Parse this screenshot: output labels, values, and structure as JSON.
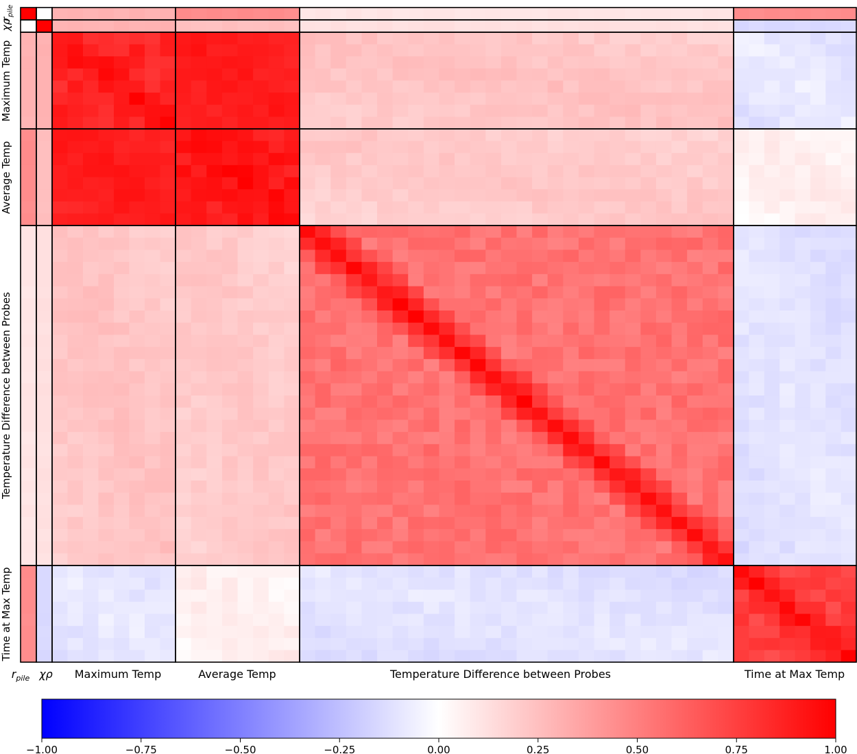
{
  "chart_data": {
    "type": "heatmap",
    "title": "",
    "xlabel": "",
    "ylabel": "",
    "groups": [
      {
        "key": "r_pile",
        "label": "r",
        "sub": "pile",
        "size": 1
      },
      {
        "key": "chi_rho",
        "label": "χρ",
        "sub": "",
        "size": 1
      },
      {
        "key": "max_temp",
        "label": "Maximum Temp",
        "sub": "",
        "size": 8
      },
      {
        "key": "avg_temp",
        "label": "Average Temp",
        "sub": "",
        "size": 8
      },
      {
        "key": "temp_diff",
        "label": "Temperature Difference between Probes",
        "sub": "",
        "size": 28
      },
      {
        "key": "time_max",
        "label": "Time at Max Temp",
        "sub": "",
        "size": 8
      }
    ],
    "block_correlations": [
      [
        1.0,
        0.0,
        0.3,
        0.45,
        0.1,
        0.45
      ],
      [
        0.0,
        1.0,
        0.3,
        0.25,
        0.12,
        -0.15
      ],
      [
        0.3,
        0.3,
        0.9,
        0.88,
        0.22,
        -0.1
      ],
      [
        0.45,
        0.25,
        0.88,
        0.95,
        0.2,
        0.05
      ],
      [
        0.1,
        0.12,
        0.22,
        0.2,
        0.6,
        -0.12
      ],
      [
        0.45,
        -0.15,
        -0.1,
        0.05,
        -0.12,
        0.8
      ]
    ],
    "within_block_pattern": "diagonal bands (strongest on the diagonal)",
    "colorbar": {
      "min": -1.0,
      "max": 1.0,
      "colors": [
        "#0000ff",
        "#ffffff",
        "#ff0000"
      ],
      "ticks": [
        "−1.00",
        "−0.75",
        "−0.50",
        "−0.25",
        "0.00",
        "0.25",
        "0.50",
        "0.75",
        "1.00"
      ]
    },
    "grid": false,
    "legend": "none"
  }
}
